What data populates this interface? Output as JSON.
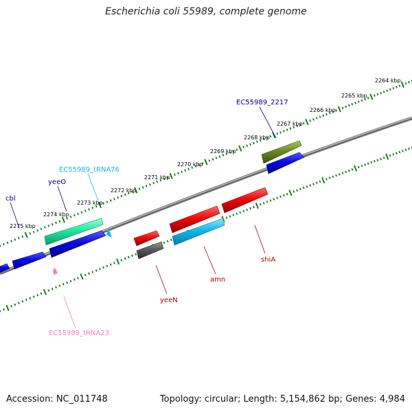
{
  "title": "Escherichia coli 55989, complete genome",
  "footer": {
    "accession": "Accession: NC_011748",
    "summary": "Topology: circular; Length: 5,154,862 bp; Genes: 4,984"
  },
  "colors": {
    "backbone": "#8a8a8a",
    "ticks": "#1a7a1a",
    "blue": "#0a0ae0",
    "red": "#ee0a0a",
    "cyan": "#10b8e8",
    "teal": "#20e8a0",
    "olive": "#6a8a20",
    "gray": "#5a5a5a",
    "pink": "#f080b8"
  },
  "scale_labels": [
    "2264 kbp",
    "2265 kbp",
    "2266 kbp",
    "2267 kbp",
    "2268 kbp",
    "2269 kbp",
    "2270 kbp",
    "2271 kbp",
    "2272 kbp",
    "2273 kbp",
    "2274 kbp",
    "2275 kbp"
  ],
  "gene_labels": {
    "ec55989_2217": "EC55989_2217",
    "trna76": "EC55989_tRNA76",
    "yeeO": "yeeO",
    "cbl": "cbl",
    "shiA": "shiA",
    "amn": "amn",
    "yeeN": "yeeN",
    "trna23": "EC55989_tRNA23"
  }
}
